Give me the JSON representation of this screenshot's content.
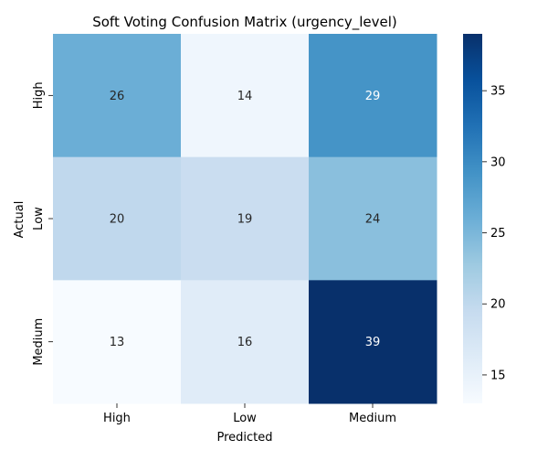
{
  "chart_data": {
    "type": "heatmap",
    "title": "Soft Voting Confusion Matrix (urgency_level)",
    "xlabel": "Predicted",
    "ylabel": "Actual",
    "x_categories": [
      "High",
      "Low",
      "Medium"
    ],
    "y_categories": [
      "High",
      "Low",
      "Medium"
    ],
    "values": [
      [
        26,
        14,
        29
      ],
      [
        20,
        19,
        24
      ],
      [
        13,
        16,
        39
      ]
    ],
    "colormap": "Blues",
    "color_range": [
      13,
      39
    ],
    "colorbar_ticks": [
      15,
      20,
      25,
      30,
      35
    ],
    "annotations": true,
    "grid": false
  }
}
